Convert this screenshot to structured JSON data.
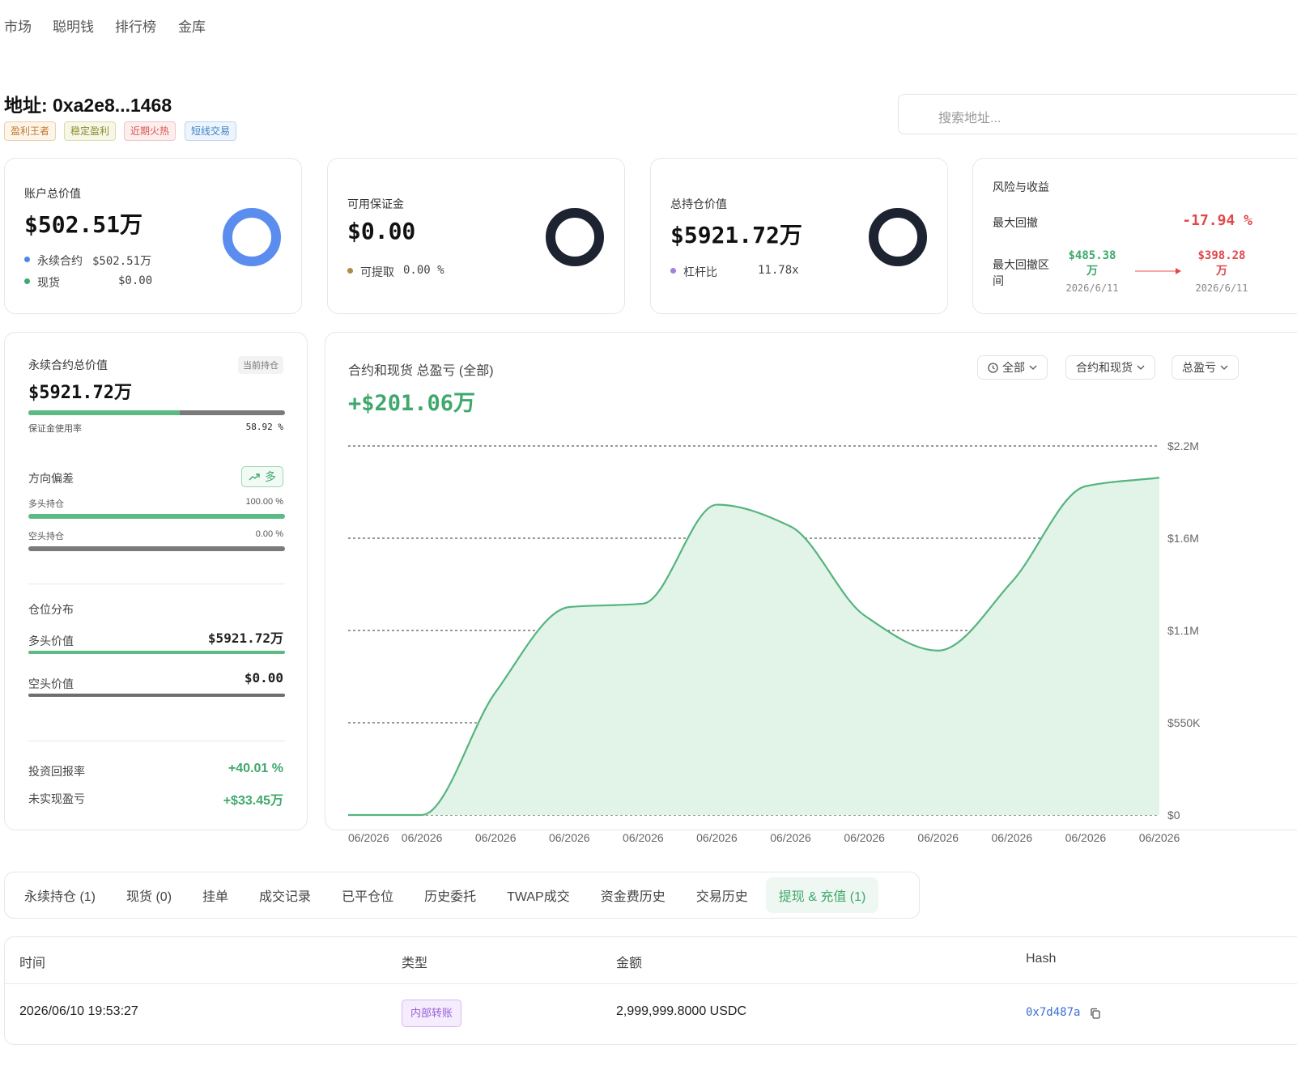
{
  "nav": [
    "市场",
    "聪明钱",
    "排行榜",
    "金库"
  ],
  "header": {
    "title": "地址: 0xa2e8...1468",
    "tags": [
      "盈利王者",
      "稳定盈利",
      "近期火热",
      "短线交易"
    ],
    "search_placeholder": "搜索地址..."
  },
  "cards": [
    {
      "label": "账户总价值",
      "value": "$502.51万",
      "legend": [
        {
          "name": "永续合约",
          "value": "$502.51万"
        },
        {
          "name": "现货",
          "value": "$0.00"
        }
      ]
    },
    {
      "label": "可用保证金",
      "value": "$0.00",
      "legend": [
        {
          "name": "可提取",
          "value": "0.00 %"
        }
      ]
    },
    {
      "label": "总持仓价值",
      "value": "$5921.72万",
      "legend": [
        {
          "name": "杠杆比",
          "value": "11.78x"
        }
      ]
    }
  ],
  "risk": {
    "title": "风险与收益",
    "max_drawdown_label": "最大回撤",
    "max_drawdown": "-17.94 %",
    "range_label": "最大回撤区间",
    "from": {
      "value": "$485.38 万",
      "date": "2026/6/11"
    },
    "to": {
      "value": "$398.28 万",
      "date": "2026/6/11"
    }
  },
  "position_panel": {
    "title": "永续合约总价值",
    "badge": "当前持仓",
    "value": "$5921.72万",
    "margin_usage_label": "保证金使用率",
    "margin_usage": "58.92 %",
    "bias_label": "方向偏差",
    "bias": "多",
    "long_label": "多头持仓",
    "long_pct": "100.00 %",
    "short_label": "空头持仓",
    "short_pct": "0.00 %",
    "distribution_label": "仓位分布",
    "long_value_label": "多头价值",
    "long_value": "$5921.72万",
    "short_value_label": "空头价值",
    "short_value": "$0.00",
    "roi_label": "投资回报率",
    "roi": "+40.01 %",
    "upnl_label": "未实现盈亏",
    "upnl": "+$33.45万"
  },
  "chart_data": {
    "type": "area",
    "title": "合约和现货 总盈亏 (全部)",
    "total": "+$201.06万",
    "filters": [
      "全部",
      "合约和现货",
      "总盈亏"
    ],
    "categories": [
      "06/2026",
      "06/2026",
      "06/2026",
      "06/2026",
      "06/2026",
      "06/2026",
      "06/2026",
      "06/2026",
      "06/2026",
      "06/2026",
      "06/2026",
      "06/2026"
    ],
    "values": [
      0,
      0,
      733000,
      1240000,
      1260000,
      1850000,
      1720000,
      1190000,
      980000,
      1390000,
      1960000,
      2010600
    ],
    "color": "#55b47f",
    "fill": "#e2f3e8",
    "ylim": [
      0,
      2200000
    ],
    "yticks": [
      {
        "value": 0,
        "label": "$0"
      },
      {
        "value": 550000,
        "label": "$550K"
      },
      {
        "value": 1100000,
        "label": "$1.1M"
      },
      {
        "value": 1650000,
        "label": "$1.6M"
      },
      {
        "value": 2200000,
        "label": "$2.2M"
      }
    ],
    "grid": true
  },
  "tabs": [
    "永续持仓 (1)",
    "现货 (0)",
    "挂单",
    "成交记录",
    "已平仓位",
    "历史委托",
    "TWAP成交",
    "资金费历史",
    "交易历史",
    "提现 & 充值 (1)"
  ],
  "active_tab": 9,
  "table": {
    "columns": [
      "时间",
      "类型",
      "金额",
      "Hash"
    ],
    "rows": [
      [
        "2026/06/10 19:53:27",
        "内部转账",
        "2,999,999.8000 USDC",
        "0x7d487a"
      ]
    ]
  }
}
